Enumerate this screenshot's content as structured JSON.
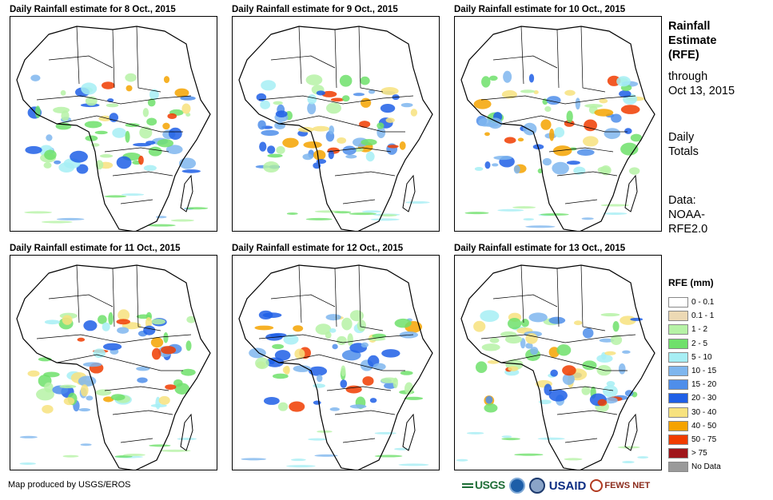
{
  "panels": [
    {
      "title": "Daily Rainfall estimate for 8 Oct., 2015"
    },
    {
      "title": "Daily Rainfall estimate for 9 Oct., 2015"
    },
    {
      "title": "Daily Rainfall estimate for 10 Oct., 2015"
    },
    {
      "title": "Daily Rainfall estimate for 11 Oct., 2015"
    },
    {
      "title": "Daily Rainfall estimate for 12 Oct., 2015"
    },
    {
      "title": "Daily Rainfall estimate for 13 Oct., 2015"
    }
  ],
  "side": {
    "title_line1": "Rainfall",
    "title_line2": "Estimate",
    "title_line3": "(RFE)",
    "through_line1": "through",
    "through_line2": "Oct 13, 2015",
    "totals_line1": "Daily",
    "totals_line2": "Totals",
    "data_line1": "Data:",
    "data_line2": "NOAA-",
    "data_line3": "RFE2.0"
  },
  "legend": {
    "title": "RFE (mm)",
    "items": [
      {
        "label": "0 - 0.1",
        "color": "#ffffff"
      },
      {
        "label": "0.1 - 1",
        "color": "#ecd9b4"
      },
      {
        "label": "1 - 2",
        "color": "#b6f2a6"
      },
      {
        "label": "2 - 5",
        "color": "#6fe06b"
      },
      {
        "label": "5 - 10",
        "color": "#a6eef4"
      },
      {
        "label": "10 - 15",
        "color": "#7fb6ee"
      },
      {
        "label": "15 - 20",
        "color": "#4f8eea"
      },
      {
        "label": "20 - 30",
        "color": "#1f5fe6"
      },
      {
        "label": "30 - 40",
        "color": "#f7e27e"
      },
      {
        "label": "40 - 50",
        "color": "#f5a300"
      },
      {
        "label": "50 - 75",
        "color": "#f03c00"
      },
      {
        "label": "> 75",
        "color": "#a0161b"
      },
      {
        "label": "No Data",
        "color": "#9a9a9a"
      }
    ]
  },
  "credit": "Map produced by USGS/EROS",
  "logos": {
    "usgs": "USGS",
    "usaid": "USAID",
    "fews": "FEWS NET"
  }
}
